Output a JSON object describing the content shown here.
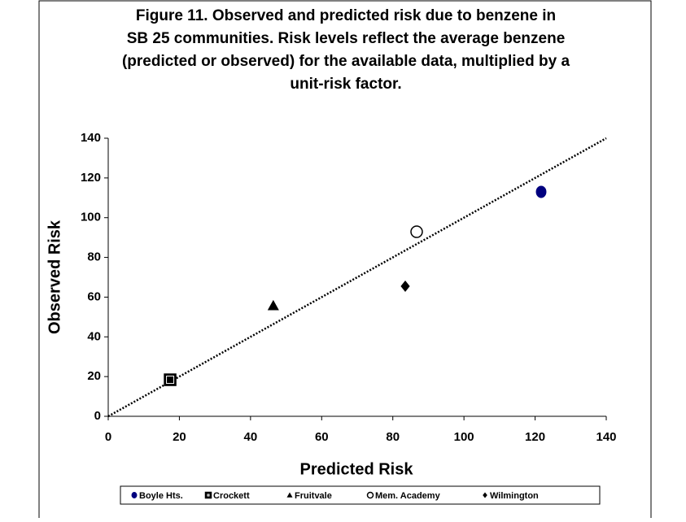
{
  "chart_data": {
    "type": "scatter",
    "title_lines": [
      "Figure 11. Observed and predicted risk due to benzene in",
      "SB 25 communities.  Risk levels reflect the average benzene",
      "(predicted or observed) for the available data, multiplied by a",
      "unit-risk factor."
    ],
    "x_label": "Predicted Risk",
    "y_label": "Observed Risk",
    "xlim": [
      0,
      140
    ],
    "ylim": [
      0,
      140
    ],
    "xticks": [
      0,
      20,
      40,
      60,
      80,
      100,
      120,
      140
    ],
    "yticks": [
      0,
      20,
      40,
      60,
      80,
      100,
      120,
      140
    ],
    "grid": false,
    "series": [
      {
        "name": "Boyle Hts.",
        "color": "#00007f",
        "marker": "circle",
        "x": [
          121.7
        ],
        "values": [
          113
        ]
      },
      {
        "name": "Crockett",
        "color": "#000000",
        "marker": "square",
        "x": [
          17.4
        ],
        "values": [
          18.4
        ]
      },
      {
        "name": "Fruitvale",
        "color": "#000000",
        "marker": "triangle",
        "x": [
          46.4
        ],
        "values": [
          55.7
        ]
      },
      {
        "name": "Mem. Academy",
        "color": "#ffffff",
        "marker": "open-circle",
        "x": [
          86.7
        ],
        "values": [
          92.9
        ]
      },
      {
        "name": "Wilmington",
        "color": "#000000",
        "marker": "diamond",
        "x": [
          83.5
        ],
        "values": [
          65.5
        ]
      }
    ],
    "reference_line": {
      "x": [
        0,
        140
      ],
      "values": [
        0,
        140
      ]
    }
  }
}
